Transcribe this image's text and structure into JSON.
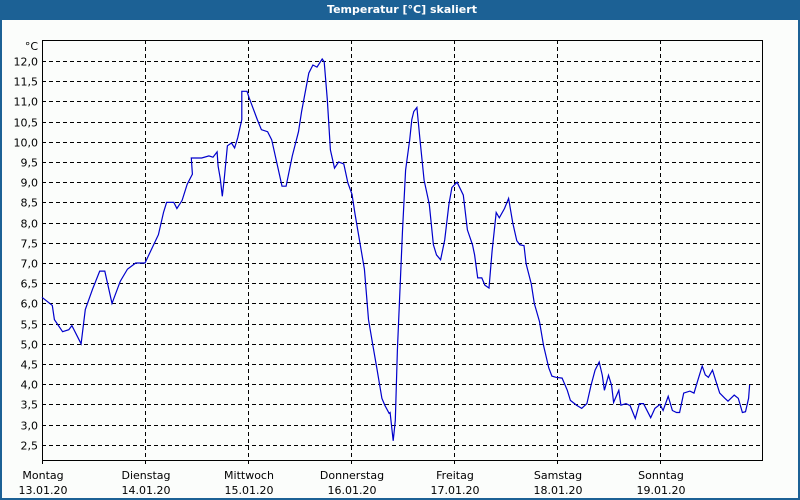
{
  "window": {
    "title": "Temperatur [°C] skaliert",
    "titlebar_color": "#1c6195"
  },
  "chart_data": {
    "type": "line",
    "title": "Temperatur [°C] skaliert",
    "xlabel": "",
    "ylabel": "°C",
    "ylim": [
      2.13,
      12.5
    ],
    "yticks": [
      2.5,
      3.0,
      3.5,
      4.0,
      4.5,
      5.0,
      5.5,
      6.0,
      6.5,
      7.0,
      7.5,
      8.0,
      8.5,
      9.0,
      9.5,
      10.0,
      10.5,
      11.0,
      11.5,
      12.0
    ],
    "ytick_labels": [
      "2,5",
      "3,0",
      "3,5",
      "4,0",
      "4,5",
      "5,0",
      "5,5",
      "6,0",
      "6,5",
      "7,0",
      "7,5",
      "8,0",
      "8,5",
      "9,0",
      "9,5",
      "10,0",
      "10,5",
      "11,0",
      "11,5",
      "12,0"
    ],
    "xlim_days": [
      0,
      7
    ],
    "categories": [
      {
        "day": "Montag",
        "date": "13.01.20"
      },
      {
        "day": "Dienstag",
        "date": "14.01.20"
      },
      {
        "day": "Mittwoch",
        "date": "15.01.20"
      },
      {
        "day": "Donnerstag",
        "date": "16.01.20"
      },
      {
        "day": "Freitag",
        "date": "17.01.20"
      },
      {
        "day": "Samstag",
        "date": "18.01.20"
      },
      {
        "day": "Sonntag",
        "date": "19.01.20"
      }
    ],
    "grid": true,
    "grid_style": "dashed",
    "line_color": "#0000cc",
    "series": [
      {
        "name": "Temperatur",
        "x_days": [
          0.0,
          0.1,
          0.12,
          0.2,
          0.26,
          0.29,
          0.38,
          0.42,
          0.49,
          0.56,
          0.61,
          0.68,
          0.76,
          0.83,
          0.91,
          1.0,
          1.13,
          1.18,
          1.21,
          1.28,
          1.31,
          1.36,
          1.41,
          1.46,
          1.45,
          1.55,
          1.62,
          1.66,
          1.7,
          1.71,
          1.73,
          1.75,
          1.77,
          1.8,
          1.84,
          1.87,
          1.9,
          1.94,
          1.94,
          1.99,
          2.01,
          2.09,
          2.13,
          2.19,
          2.23,
          2.3,
          2.33,
          2.37,
          2.43,
          2.49,
          2.52,
          2.59,
          2.63,
          2.67,
          2.72,
          2.74,
          2.77,
          2.8,
          2.84,
          2.88,
          2.93,
          2.97,
          3.01,
          3.04,
          3.13,
          3.17,
          3.21,
          3.25,
          3.3,
          3.33,
          3.37,
          3.38,
          3.41,
          3.43,
          3.45,
          3.5,
          3.53,
          3.57,
          3.59,
          3.61,
          3.64,
          3.67,
          3.71,
          3.76,
          3.8,
          3.83,
          3.87,
          3.91,
          3.95,
          3.98,
          4.03,
          4.09,
          4.13,
          4.18,
          4.2,
          4.23,
          4.27,
          4.3,
          4.34,
          4.37,
          4.41,
          4.44,
          4.49,
          4.53,
          4.57,
          4.61,
          4.64,
          4.68,
          4.7,
          4.75,
          4.78,
          4.83,
          4.87,
          4.92,
          4.95,
          4.99,
          5.05,
          5.1,
          5.13,
          5.19,
          5.24,
          5.29,
          5.33,
          5.37,
          5.41,
          5.44,
          5.46,
          5.5,
          5.53,
          5.55,
          5.6,
          5.62,
          5.67,
          5.71,
          5.76,
          5.8,
          5.84,
          5.91,
          5.95,
          6.0,
          6.03,
          6.08,
          6.12,
          6.16,
          6.19,
          6.23,
          6.29,
          6.33,
          6.37,
          6.41,
          6.44,
          6.47,
          6.51,
          6.54,
          6.58,
          6.63,
          6.66,
          6.72,
          6.76,
          6.8,
          6.83,
          6.86,
          6.87,
          6.89,
          6.91
        ],
        "values": [
          6.15,
          5.95,
          5.6,
          5.3,
          5.35,
          5.45,
          5.0,
          5.85,
          6.35,
          6.8,
          6.8,
          6.0,
          6.55,
          6.85,
          7.0,
          7.0,
          7.7,
          8.25,
          8.5,
          8.5,
          8.35,
          8.55,
          8.95,
          9.2,
          9.6,
          9.6,
          9.65,
          9.62,
          9.75,
          9.4,
          9.1,
          8.65,
          9.1,
          9.9,
          9.97,
          9.85,
          10.1,
          10.55,
          11.25,
          11.25,
          11.1,
          10.55,
          10.3,
          10.25,
          10.05,
          9.25,
          8.9,
          8.9,
          9.65,
          10.25,
          10.75,
          11.7,
          11.9,
          11.85,
          12.05,
          11.98,
          11.05,
          9.8,
          9.35,
          9.5,
          9.45,
          8.98,
          8.7,
          8.2,
          6.85,
          5.6,
          5.0,
          4.4,
          3.65,
          3.47,
          3.28,
          3.3,
          2.6,
          3.1,
          4.85,
          7.8,
          9.3,
          10.05,
          10.55,
          10.75,
          10.85,
          10.05,
          9.05,
          8.45,
          7.45,
          7.2,
          7.08,
          7.57,
          8.45,
          8.87,
          9.0,
          8.68,
          7.82,
          7.45,
          7.2,
          6.63,
          6.63,
          6.45,
          6.38,
          7.3,
          8.25,
          8.12,
          8.35,
          8.6,
          8.0,
          7.55,
          7.45,
          7.43,
          6.98,
          6.48,
          6.0,
          5.55,
          4.95,
          4.4,
          4.2,
          4.17,
          4.15,
          3.85,
          3.6,
          3.48,
          3.4,
          3.52,
          3.97,
          4.35,
          4.55,
          4.22,
          3.85,
          4.22,
          3.97,
          3.55,
          3.85,
          3.48,
          3.52,
          3.47,
          3.15,
          3.52,
          3.52,
          3.17,
          3.4,
          3.5,
          3.35,
          3.7,
          3.35,
          3.3,
          3.3,
          3.78,
          3.83,
          3.78,
          4.12,
          4.45,
          4.23,
          4.17,
          4.35,
          4.1,
          3.78,
          3.65,
          3.58,
          3.73,
          3.65,
          3.3,
          3.32,
          3.65,
          3.98
        ]
      }
    ],
    "legend": null
  }
}
